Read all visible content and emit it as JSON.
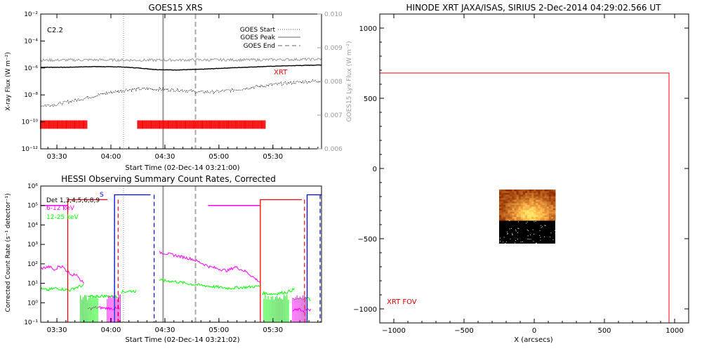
{
  "chart_data": [
    {
      "id": "goes",
      "type": "line",
      "title": "GOES15 XRS",
      "xlabel": "Start Time (02-Dec-14 03:21:00)",
      "ylabel": "X-ray Flux (W m⁻²)",
      "y2label": "GOES15 Lyx Flux (W m⁻²)",
      "xlim": [
        201,
        357
      ],
      "ylim_log10": [
        -12,
        -2
      ],
      "y2lim": [
        0.006,
        0.01
      ],
      "xticks": [
        210,
        240,
        270,
        300,
        330
      ],
      "xtick_labels": [
        "03:30",
        "04:00",
        "04:30",
        "05:00",
        "05:30"
      ],
      "yticks_log10": [
        -12,
        -10,
        -8,
        -6,
        -4,
        -2
      ],
      "ytick_labels": [
        "10⁻¹²",
        "10⁻¹⁰",
        "10⁻⁸",
        "10⁻⁶",
        "10⁻⁴",
        "10⁻²"
      ],
      "y2ticks": [
        0.006,
        0.007,
        0.008,
        0.009,
        0.01
      ],
      "y2tick_labels": [
        "0.006",
        "0.007",
        "0.008",
        "0.009",
        "0.010"
      ],
      "class_label": "C2.2",
      "xrt_label": "XRT",
      "legend": [
        {
          "name": "GOES Start",
          "style": "dotted"
        },
        {
          "name": "GOES Peak",
          "style": "solid"
        },
        {
          "name": "GOES End",
          "style": "dashed"
        }
      ],
      "legend_position": "top-right",
      "event_lines": {
        "start": 247,
        "peak": 269,
        "end": 287
      },
      "series": [
        {
          "name": "long",
          "scale": "left",
          "x": [
            201,
            215,
            230,
            245,
            255,
            265,
            275,
            290,
            305,
            320,
            335,
            350,
            357
          ],
          "log10_values": [
            -5.95,
            -5.95,
            -5.9,
            -5.92,
            -6.0,
            -6.12,
            -6.15,
            -6.1,
            -6.0,
            -5.92,
            -5.85,
            -5.8,
            -5.78
          ]
        },
        {
          "name": "short",
          "scale": "left",
          "x": [
            201,
            210,
            220,
            230,
            240,
            250,
            260,
            270,
            280,
            290,
            300,
            310,
            320,
            330,
            340,
            350,
            357
          ],
          "log10_values": [
            -8.8,
            -8.7,
            -8.4,
            -8.1,
            -7.8,
            -7.6,
            -7.55,
            -7.6,
            -7.65,
            -7.8,
            -7.75,
            -7.6,
            -7.4,
            -7.25,
            -7.1,
            -7.0,
            -6.95
          ]
        },
        {
          "name": "lyman",
          "scale": "right",
          "x": [
            201,
            230,
            260,
            290,
            320,
            357
          ],
          "values": [
            0.00863,
            0.00864,
            0.00863,
            0.00864,
            0.00864,
            0.00866
          ]
        }
      ],
      "xrt_bars": [
        [
          201,
          227
        ],
        [
          255,
          326
        ]
      ],
      "xrt_bar_level_log10": -10.2
    },
    {
      "id": "hessi",
      "type": "line",
      "title": "HESSI Observing Summary Count Rates, Corrected",
      "xlabel": "Start Time (02-Dec-14 03:21:02)",
      "ylabel": "Corrected Count Rate (s⁻¹ detector⁻¹)",
      "xlim": [
        201,
        357
      ],
      "ylim_log10": [
        -1,
        6
      ],
      "xticks": [
        210,
        240,
        270,
        300,
        330
      ],
      "xtick_labels": [
        "03:30",
        "04:00",
        "04:30",
        "05:00",
        "05:30"
      ],
      "yticks_log10": [
        -1,
        0,
        1,
        2,
        3,
        4,
        5,
        6
      ],
      "ytick_labels": [
        "10⁻¹",
        "10⁰",
        "10¹",
        "10²",
        "10³",
        "10⁴",
        "10⁵",
        "10⁶"
      ],
      "legend": [
        {
          "name": "Det 1,3,4,5,6,8,9",
          "color": "#000000"
        },
        {
          "name": "6-12 keV",
          "color": "#ff00ff"
        },
        {
          "name": "12-25 keV",
          "color": "#00ff00"
        }
      ],
      "legend_position": "top-left",
      "s_label": "S",
      "event_lines": {
        "start": 247,
        "peak": 269,
        "end": 287
      },
      "segments": [
        {
          "series": "6-12 keV",
          "x": [
            201,
            203,
            206,
            209,
            211,
            213,
            216,
            219,
            221,
            223,
            225
          ],
          "log10_values": [
            1.75,
            1.8,
            1.85,
            1.65,
            1.9,
            1.85,
            1.6,
            1.4,
            1.5,
            1.2,
            1.0
          ]
        },
        {
          "series": "12-25 keV",
          "x": [
            201,
            205,
            209,
            213,
            217,
            221,
            225
          ],
          "log10_values": [
            0.7,
            0.65,
            0.75,
            0.7,
            0.65,
            0.8,
            0.9
          ]
        },
        {
          "series": "6-12 keV",
          "x": [
            227,
            233,
            240,
            245
          ],
          "log10_values": [
            -0.3,
            -0.25,
            -0.3,
            -0.3
          ]
        },
        {
          "series": "12-25 keV",
          "x": [
            227,
            235,
            245
          ],
          "log10_values": [
            0.3,
            0.35,
            0.3
          ]
        },
        {
          "series": "12-25 keV",
          "x": [
            246,
            250,
            254
          ],
          "log10_values": [
            0.55,
            0.6,
            0.6
          ]
        },
        {
          "series": "6-12 keV",
          "x": [
            267,
            275,
            285,
            295,
            302,
            305,
            309,
            315,
            323
          ],
          "log10_values": [
            2.6,
            2.45,
            2.25,
            1.85,
            1.7,
            1.65,
            1.85,
            1.6,
            1.05
          ]
        },
        {
          "series": "12-25 keV",
          "x": [
            267,
            275,
            285,
            295,
            305,
            315,
            323
          ],
          "log10_values": [
            1.15,
            1.1,
            0.95,
            0.85,
            0.75,
            0.8,
            0.85
          ]
        },
        {
          "series": "12-25 keV",
          "x": [
            324,
            330,
            338,
            342
          ],
          "log10_values": [
            0.5,
            0.45,
            0.55,
            0.7
          ]
        },
        {
          "series": "6-12 keV",
          "x": [
            341,
            344,
            347,
            351
          ],
          "log10_values": [
            -0.4,
            -0.35,
            -0.4,
            -0.35
          ]
        },
        {
          "series": "12-25 keV",
          "x": [
            341,
            345,
            349,
            351
          ],
          "log10_values": [
            0.15,
            0.2,
            0.25,
            0.15
          ]
        },
        {
          "series": "6-12 keV",
          "x": [
            294,
            323
          ],
          "log10_values": [
            5.0,
            5.0
          ]
        },
        {
          "series": "6-12 keV",
          "x": [
            201,
            216
          ],
          "log10_values": [
            5.0,
            5.0
          ]
        }
      ],
      "red_intervals": [
        {
          "x0": 216,
          "x1": 238,
          "level_log10": 5.3,
          "end_dashed": 244
        },
        {
          "x0": 323,
          "x1": 346,
          "level_log10": 5.3,
          "end_dashed": 361
        }
      ],
      "blue_intervals": [
        {
          "x0": 242,
          "x1": 262,
          "level_log10": 5.55,
          "end_dashed": 264
        },
        {
          "x0": 349,
          "x1": 357,
          "level_log10": 5.55,
          "end_dashed": 363
        }
      ]
    },
    {
      "id": "hinode",
      "type": "map",
      "title": "HINODE XRT JAXA/ISAS, SIRIUS  2-Dec-2014 04:29:02.566 UT",
      "xlabel": "X (arcsecs)",
      "xlim": [
        -1100,
        1100
      ],
      "ylim": [
        -1100,
        1100
      ],
      "xticks": [
        -1000,
        -500,
        0,
        500,
        1000
      ],
      "xtick_labels": [
        "−1000",
        "−500",
        "0",
        "500",
        "1000"
      ],
      "yticks": [
        -1000,
        -500,
        0,
        500,
        1000
      ],
      "ytick_labels": [
        "−1000",
        "−500",
        "0",
        "500",
        "1000"
      ],
      "fov_label": "XRT FOV",
      "fov_box": [
        -1100,
        -1100,
        960,
        680
      ],
      "image_box": [
        -250,
        -535,
        150,
        -150
      ]
    }
  ]
}
